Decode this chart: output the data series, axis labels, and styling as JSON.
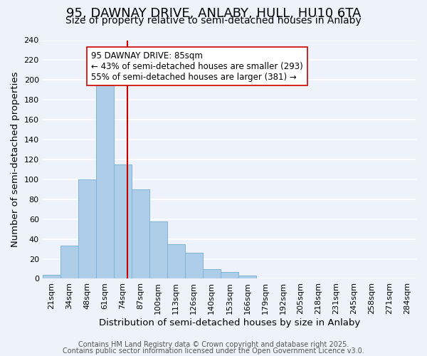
{
  "title": "95, DAWNAY DRIVE, ANLABY, HULL, HU10 6TA",
  "subtitle": "Size of property relative to semi-detached houses in Anlaby",
  "xlabel": "Distribution of semi-detached houses by size in Anlaby",
  "ylabel": "Number of semi-detached properties",
  "bin_labels": [
    "21sqm",
    "34sqm",
    "48sqm",
    "61sqm",
    "74sqm",
    "87sqm",
    "100sqm",
    "113sqm",
    "126sqm",
    "140sqm",
    "153sqm",
    "166sqm",
    "179sqm",
    "192sqm",
    "205sqm",
    "218sqm",
    "231sqm",
    "245sqm",
    "258sqm",
    "271sqm",
    "284sqm"
  ],
  "bar_heights": [
    4,
    33,
    100,
    200,
    115,
    90,
    58,
    35,
    26,
    10,
    7,
    3,
    0,
    0,
    0,
    0,
    0,
    0,
    0,
    0,
    0
  ],
  "bar_color": "#aecde8",
  "bar_edge_color": "#7fb3d9",
  "ylim": [
    0,
    240
  ],
  "yticks": [
    0,
    20,
    40,
    60,
    80,
    100,
    120,
    140,
    160,
    180,
    200,
    220,
    240
  ],
  "property_line_x": 4.77,
  "property_line_color": "#cc0000",
  "annotation_title": "95 DAWNAY DRIVE: 85sqm",
  "annotation_line1": "← 43% of semi-detached houses are smaller (293)",
  "annotation_line2": "55% of semi-detached houses are larger (381) →",
  "annotation_box_color": "#ffffff",
  "annotation_box_edge_color": "#cc0000",
  "footer_line1": "Contains HM Land Registry data © Crown copyright and database right 2025.",
  "footer_line2": "Contains public sector information licensed under the Open Government Licence v3.0.",
  "background_color": "#eef2fb",
  "plot_background_color": "#eef2fb",
  "grid_color": "#ffffff",
  "title_fontsize": 13,
  "subtitle_fontsize": 10,
  "axis_label_fontsize": 9.5,
  "tick_fontsize": 8,
  "footer_fontsize": 7
}
